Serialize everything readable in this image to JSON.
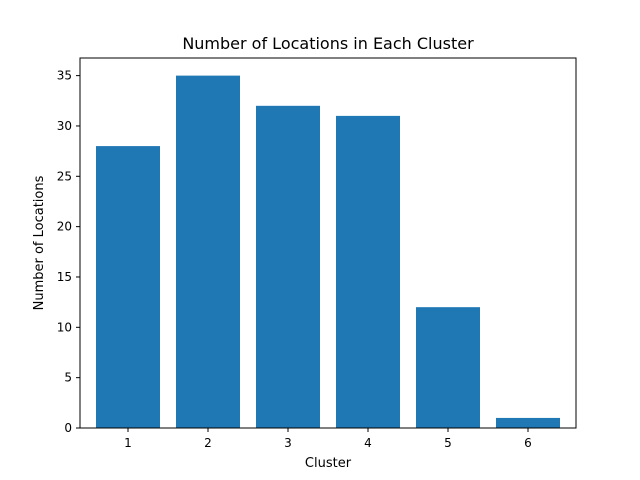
{
  "chart_data": {
    "type": "bar",
    "title": "Number of Locations in Each Cluster",
    "xlabel": "Cluster",
    "ylabel": "Number of Locations",
    "categories": [
      "1",
      "2",
      "3",
      "4",
      "5",
      "6"
    ],
    "values": [
      28,
      35,
      32,
      31,
      12,
      1
    ],
    "ylim": [
      0,
      36.75
    ],
    "yticks": [
      "0",
      "5",
      "10",
      "15",
      "20",
      "25",
      "30",
      "35"
    ],
    "bar_color": "#1f77b4",
    "grid": false,
    "legend": "none"
  }
}
